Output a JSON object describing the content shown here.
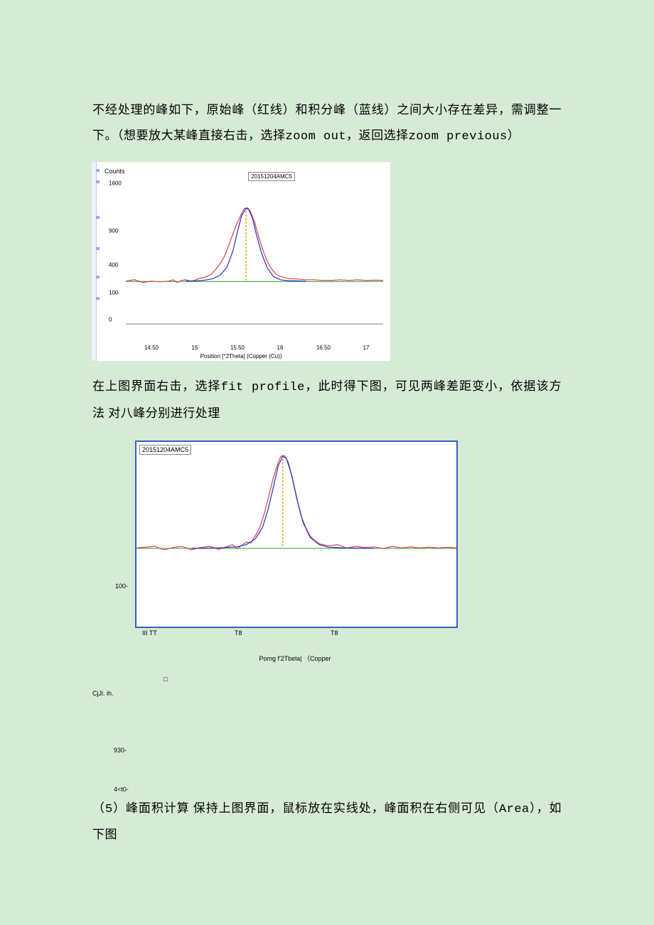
{
  "paragraphs": {
    "p1a": "不经处理的峰如下，原始峰（红线）和积分峰（蓝线）之间大小存在差异，需调整一下。（想要放大某峰直接右击，选择",
    "p1b_mono": "zoom out",
    "p1c": "，返回选择",
    "p1d_mono": "zoom previous",
    "p1e": "）",
    "p2a": "在上图界面右击，选择",
    "p2b_mono": "fit profile",
    "p2c": "，此时得下图，可见两峰差距变小，依据该方法 对八峰分别进行处理",
    "p3a": "（",
    "p3b_mono": "5",
    "p3c": "）峰面积计算 保持上图界面，鼠标放在实线处，峰面积在右侧可见（",
    "p3d_mono": "Area",
    "p3e": "），如下图"
  },
  "chart1": {
    "type": "line",
    "legend": "20151204AMC5",
    "ylabel": "Counts",
    "xlabel": "Position [°2Theta] (Copper (Cu))",
    "xlim": [
      14.2,
      17.2
    ],
    "ylim": [
      0,
      1100
    ],
    "yticks": [
      0,
      100,
      400,
      900,
      1600
    ],
    "ytick_labels": [
      "0",
      "100",
      "400",
      "900",
      "1600"
    ],
    "xticks": [
      14.5,
      15,
      15.5,
      16,
      16.5,
      17
    ],
    "xtick_labels": [
      "14.50",
      "15",
      "15.50",
      "16",
      "16.50",
      "17"
    ],
    "colors": {
      "red": "#e04040",
      "blue": "#2030d0",
      "green": "#20a020",
      "marker": "#f0a000",
      "background": "#ffffff"
    },
    "red_series": [
      [
        14.2,
        225
      ],
      [
        14.3,
        235
      ],
      [
        14.4,
        215
      ],
      [
        14.5,
        225
      ],
      [
        14.6,
        220
      ],
      [
        14.7,
        225
      ],
      [
        14.75,
        235
      ],
      [
        14.8,
        215
      ],
      [
        14.85,
        230
      ],
      [
        14.9,
        235
      ],
      [
        14.95,
        225
      ],
      [
        15.0,
        230
      ],
      [
        15.05,
        245
      ],
      [
        15.1,
        250
      ],
      [
        15.15,
        260
      ],
      [
        15.2,
        280
      ],
      [
        15.25,
        320
      ],
      [
        15.3,
        370
      ],
      [
        15.35,
        440
      ],
      [
        15.4,
        560
      ],
      [
        15.45,
        700
      ],
      [
        15.5,
        850
      ],
      [
        15.55,
        980
      ],
      [
        15.58,
        1060
      ],
      [
        15.62,
        1070
      ],
      [
        15.65,
        1020
      ],
      [
        15.7,
        860
      ],
      [
        15.75,
        660
      ],
      [
        15.8,
        500
      ],
      [
        15.85,
        390
      ],
      [
        15.9,
        320
      ],
      [
        15.95,
        280
      ],
      [
        16.0,
        260
      ],
      [
        16.1,
        245
      ],
      [
        16.2,
        240
      ],
      [
        16.3,
        235
      ],
      [
        16.4,
        235
      ],
      [
        16.5,
        230
      ],
      [
        16.6,
        230
      ],
      [
        16.7,
        235
      ],
      [
        16.8,
        230
      ],
      [
        16.9,
        235
      ],
      [
        17.0,
        230
      ],
      [
        17.1,
        232
      ],
      [
        17.2,
        230
      ]
    ],
    "blue_series": [
      [
        14.9,
        225
      ],
      [
        15.1,
        230
      ],
      [
        15.2,
        240
      ],
      [
        15.3,
        270
      ],
      [
        15.38,
        340
      ],
      [
        15.45,
        500
      ],
      [
        15.5,
        720
      ],
      [
        15.55,
        950
      ],
      [
        15.6,
        1060
      ],
      [
        15.63,
        1050
      ],
      [
        15.68,
        900
      ],
      [
        15.72,
        700
      ],
      [
        15.78,
        480
      ],
      [
        15.85,
        330
      ],
      [
        15.92,
        260
      ],
      [
        16.0,
        235
      ],
      [
        16.1,
        228
      ],
      [
        16.3,
        225
      ]
    ],
    "green_baseline_y": 222,
    "marker_x": 15.6
  },
  "chart2": {
    "type": "line",
    "legend": "20151204AMC5",
    "axis_text": "Pomg f'2Tbela|  （Copper",
    "ytick_label": "100-",
    "ytick_y": 200,
    "xtick_small": [
      "III  TT",
      "T8",
      "T8"
    ],
    "xlim": [
      14.0,
      17.5
    ],
    "ylim": [
      50,
      1100
    ],
    "colors": {
      "red": "#e04040",
      "blue": "#2030d0",
      "green": "#20a020",
      "marker": "#f0a000",
      "border": "#3a5fbb"
    },
    "red_series": [
      [
        14.0,
        225
      ],
      [
        14.2,
        235
      ],
      [
        14.3,
        215
      ],
      [
        14.4,
        228
      ],
      [
        14.5,
        235
      ],
      [
        14.6,
        215
      ],
      [
        14.7,
        228
      ],
      [
        14.8,
        235
      ],
      [
        14.9,
        218
      ],
      [
        15.0,
        235
      ],
      [
        15.05,
        245
      ],
      [
        15.1,
        222
      ],
      [
        15.15,
        240
      ],
      [
        15.2,
        260
      ],
      [
        15.25,
        255
      ],
      [
        15.3,
        300
      ],
      [
        15.35,
        360
      ],
      [
        15.4,
        470
      ],
      [
        15.45,
        630
      ],
      [
        15.5,
        820
      ],
      [
        15.55,
        980
      ],
      [
        15.58,
        1060
      ],
      [
        15.62,
        1065
      ],
      [
        15.66,
        990
      ],
      [
        15.7,
        820
      ],
      [
        15.75,
        610
      ],
      [
        15.8,
        450
      ],
      [
        15.85,
        360
      ],
      [
        15.9,
        300
      ],
      [
        15.95,
        270
      ],
      [
        16.0,
        250
      ],
      [
        16.1,
        238
      ],
      [
        16.2,
        245
      ],
      [
        16.3,
        225
      ],
      [
        16.4,
        235
      ],
      [
        16.5,
        228
      ],
      [
        16.6,
        232
      ],
      [
        16.7,
        222
      ],
      [
        16.8,
        235
      ],
      [
        16.9,
        225
      ],
      [
        17.0,
        232
      ],
      [
        17.1,
        225
      ],
      [
        17.2,
        230
      ],
      [
        17.3,
        225
      ],
      [
        17.4,
        230
      ],
      [
        17.5,
        225
      ]
    ],
    "blue_series": [
      [
        14.6,
        224
      ],
      [
        14.9,
        226
      ],
      [
        15.1,
        232
      ],
      [
        15.2,
        245
      ],
      [
        15.3,
        280
      ],
      [
        15.38,
        360
      ],
      [
        15.44,
        500
      ],
      [
        15.5,
        720
      ],
      [
        15.55,
        940
      ],
      [
        15.6,
        1055
      ],
      [
        15.64,
        1030
      ],
      [
        15.7,
        830
      ],
      [
        15.76,
        580
      ],
      [
        15.82,
        400
      ],
      [
        15.9,
        290
      ],
      [
        16.0,
        245
      ],
      [
        16.1,
        230
      ],
      [
        16.3,
        225
      ],
      [
        16.6,
        224
      ]
    ],
    "green_baseline_y": 223,
    "marker_x": 15.6
  },
  "stray_text": {
    "cjji": "CjJi. ih.",
    "bar": "□",
    "y930": "930-",
    "y4t0": "4<t0-"
  }
}
